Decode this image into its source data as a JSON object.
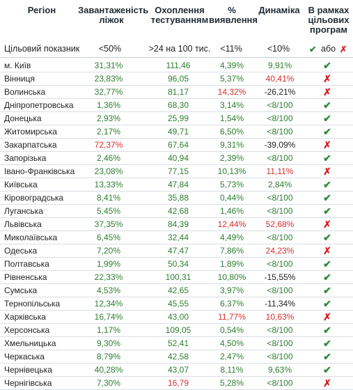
{
  "header": {
    "region": "Регіон",
    "beds": "Завантаженість ліжок",
    "testing": "Охоплення тестуванням",
    "detection": "% виявлення",
    "dynamics": "Динаміка",
    "programs": "В рамках цільових програм"
  },
  "target": {
    "label": "Цільовий показник",
    "beds": "<50%",
    "testing": ">24 на 100 тис.",
    "detection": "<11%",
    "dynamics": "<10%",
    "check_symbol": "✔",
    "or": "або",
    "cross_symbol": "✗"
  },
  "rows": [
    {
      "region": "м. Київ",
      "beds": "31,31%",
      "beds_c": "green",
      "testing": "111,46",
      "testing_c": "green",
      "detection": "4,39%",
      "detection_c": "green",
      "dynamics": "9,91%",
      "dynamics_c": "green",
      "ok": true
    },
    {
      "region": "Вінниця",
      "beds": "23,83%",
      "beds_c": "green",
      "testing": "96,05",
      "testing_c": "green",
      "detection": "5,37%",
      "detection_c": "green",
      "dynamics": "40,41%",
      "dynamics_c": "red",
      "ok": false
    },
    {
      "region": "Волинська",
      "beds": "32,77%",
      "beds_c": "green",
      "testing": "81,17",
      "testing_c": "green",
      "detection": "14,32%",
      "detection_c": "red",
      "dynamics": "-26,21%",
      "dynamics_c": "dark",
      "ok": false
    },
    {
      "region": "Дніпропетровська",
      "beds": "1,36%",
      "beds_c": "green",
      "testing": "68,30",
      "testing_c": "green",
      "detection": "3,14%",
      "detection_c": "green",
      "dynamics": "<8/100",
      "dynamics_c": "green",
      "ok": true
    },
    {
      "region": "Донецька",
      "beds": "2,93%",
      "beds_c": "green",
      "testing": "25,99",
      "testing_c": "green",
      "detection": "1,54%",
      "detection_c": "green",
      "dynamics": "<8/100",
      "dynamics_c": "green",
      "ok": true
    },
    {
      "region": "Житомирська",
      "beds": "2,17%",
      "beds_c": "green",
      "testing": "49,71",
      "testing_c": "green",
      "detection": "6,50%",
      "detection_c": "green",
      "dynamics": "<8/100",
      "dynamics_c": "green",
      "ok": true
    },
    {
      "region": "Закарпатська",
      "beds": "72,37%",
      "beds_c": "red",
      "testing": "67,64",
      "testing_c": "green",
      "detection": "9,31%",
      "detection_c": "green",
      "dynamics": "-39,09%",
      "dynamics_c": "dark",
      "ok": false
    },
    {
      "region": "Запорізька",
      "beds": "2,46%",
      "beds_c": "green",
      "testing": "40,94",
      "testing_c": "green",
      "detection": "2,39%",
      "detection_c": "green",
      "dynamics": "<8/100",
      "dynamics_c": "green",
      "ok": true
    },
    {
      "region": "Івано-Франківська",
      "beds": "23,08%",
      "beds_c": "green",
      "testing": "77,15",
      "testing_c": "green",
      "detection": "10,13%",
      "detection_c": "green",
      "dynamics": "11,11%",
      "dynamics_c": "red",
      "ok": false
    },
    {
      "region": "Київська",
      "beds": "13,33%",
      "beds_c": "green",
      "testing": "47,84",
      "testing_c": "green",
      "detection": "5,73%",
      "detection_c": "green",
      "dynamics": "2,84%",
      "dynamics_c": "green",
      "ok": true
    },
    {
      "region": "Кіровоградська",
      "beds": "8,41%",
      "beds_c": "green",
      "testing": "35,88",
      "testing_c": "green",
      "detection": "0,44%",
      "detection_c": "green",
      "dynamics": "<8/100",
      "dynamics_c": "green",
      "ok": true
    },
    {
      "region": "Луганська",
      "beds": "5,45%",
      "beds_c": "green",
      "testing": "42,68",
      "testing_c": "green",
      "detection": "1,46%",
      "detection_c": "green",
      "dynamics": "<8/100",
      "dynamics_c": "green",
      "ok": true
    },
    {
      "region": "Львівська",
      "beds": "37,35%",
      "beds_c": "green",
      "testing": "84,39",
      "testing_c": "green",
      "detection": "12,44%",
      "detection_c": "red",
      "dynamics": "52,68%",
      "dynamics_c": "red",
      "ok": false
    },
    {
      "region": "Миколаївська",
      "beds": "6,45%",
      "beds_c": "green",
      "testing": "32,44",
      "testing_c": "green",
      "detection": "4,49%",
      "detection_c": "green",
      "dynamics": "<8/100",
      "dynamics_c": "green",
      "ok": true
    },
    {
      "region": "Одеська",
      "beds": "7,20%",
      "beds_c": "green",
      "testing": "47,47",
      "testing_c": "green",
      "detection": "7,86%",
      "detection_c": "green",
      "dynamics": "24,23%",
      "dynamics_c": "red",
      "ok": false
    },
    {
      "region": "Полтавська",
      "beds": "1,99%",
      "beds_c": "green",
      "testing": "50,34",
      "testing_c": "green",
      "detection": "1,89%",
      "detection_c": "green",
      "dynamics": "<8/100",
      "dynamics_c": "green",
      "ok": true
    },
    {
      "region": "Рівненська",
      "beds": "22,33%",
      "beds_c": "green",
      "testing": "100,31",
      "testing_c": "green",
      "detection": "10,80%",
      "detection_c": "green",
      "dynamics": "-15,55%",
      "dynamics_c": "dark",
      "ok": true
    },
    {
      "region": "Сумська",
      "beds": "4,53%",
      "beds_c": "green",
      "testing": "42,65",
      "testing_c": "green",
      "detection": "3,97%",
      "detection_c": "green",
      "dynamics": "<8/100",
      "dynamics_c": "green",
      "ok": true
    },
    {
      "region": "Тернопільська",
      "beds": "12,34%",
      "beds_c": "green",
      "testing": "45,55",
      "testing_c": "green",
      "detection": "6,37%",
      "detection_c": "green",
      "dynamics": "-11,34%",
      "dynamics_c": "dark",
      "ok": true
    },
    {
      "region": "Харківська",
      "beds": "16,74%",
      "beds_c": "green",
      "testing": "43,00",
      "testing_c": "green",
      "detection": "11,77%",
      "detection_c": "red",
      "dynamics": "10,63%",
      "dynamics_c": "red",
      "ok": false
    },
    {
      "region": "Херсонська",
      "beds": "1,17%",
      "beds_c": "green",
      "testing": "109,05",
      "testing_c": "green",
      "detection": "0,54%",
      "detection_c": "green",
      "dynamics": "<8/100",
      "dynamics_c": "green",
      "ok": true
    },
    {
      "region": "Хмельницька",
      "beds": "9,30%",
      "beds_c": "green",
      "testing": "52,41",
      "testing_c": "green",
      "detection": "4,50%",
      "detection_c": "green",
      "dynamics": "<8/100",
      "dynamics_c": "green",
      "ok": true
    },
    {
      "region": "Черкаська",
      "beds": "8,79%",
      "beds_c": "green",
      "testing": "42,58",
      "testing_c": "green",
      "detection": "2,47%",
      "detection_c": "green",
      "dynamics": "<8/100",
      "dynamics_c": "green",
      "ok": true
    },
    {
      "region": "Чернівецька",
      "beds": "40,28%",
      "beds_c": "green",
      "testing": "43,07",
      "testing_c": "green",
      "detection": "8,11%",
      "detection_c": "green",
      "dynamics": "9,63%",
      "dynamics_c": "green",
      "ok": true
    },
    {
      "region": "Чернігівська",
      "beds": "7,30%",
      "beds_c": "green",
      "testing": "16,79",
      "testing_c": "red",
      "detection": "5,28%",
      "detection_c": "green",
      "dynamics": "<8/100",
      "dynamics_c": "green",
      "ok": false
    }
  ],
  "symbols": {
    "ok": "✔",
    "no": "✗"
  },
  "colors": {
    "green": "#2f7d32",
    "red": "#d32f2f",
    "dark": "#222222"
  }
}
